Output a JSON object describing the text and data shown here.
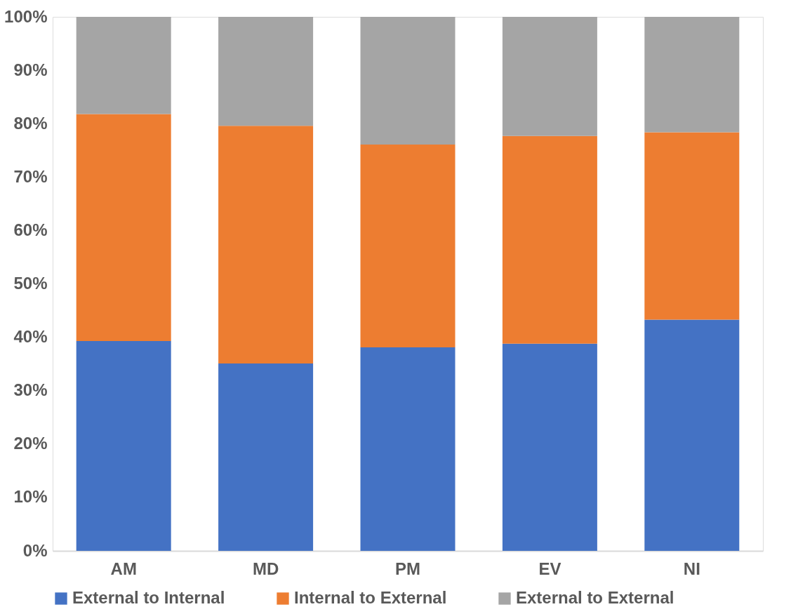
{
  "chart_data": {
    "type": "bar",
    "stacked": true,
    "categories": [
      "AM",
      "MD",
      "PM",
      "EV",
      "NI"
    ],
    "series": [
      {
        "name": "External to Internal",
        "color": "#4472c4",
        "values": [
          39.3,
          35.1,
          38.1,
          38.8,
          43.3
        ]
      },
      {
        "name": "Internal to External",
        "color": "#ed7d31",
        "values": [
          42.5,
          44.5,
          38.0,
          38.9,
          35.1
        ]
      },
      {
        "name": "External to External",
        "color": "#a5a5a5",
        "values": [
          18.2,
          20.4,
          23.9,
          22.3,
          21.6
        ]
      }
    ],
    "ylim": [
      0,
      100
    ],
    "yticks": [
      {
        "value": 0,
        "label": "0%"
      },
      {
        "value": 10,
        "label": "10%"
      },
      {
        "value": 20,
        "label": "20%"
      },
      {
        "value": 30,
        "label": "30%"
      },
      {
        "value": 40,
        "label": "40%"
      },
      {
        "value": 50,
        "label": "50%"
      },
      {
        "value": 60,
        "label": "60%"
      },
      {
        "value": 70,
        "label": "70%"
      },
      {
        "value": 80,
        "label": "80%"
      },
      {
        "value": 90,
        "label": "90%"
      },
      {
        "value": 100,
        "label": "100%"
      }
    ],
    "grid": false,
    "legend": "bottom"
  }
}
